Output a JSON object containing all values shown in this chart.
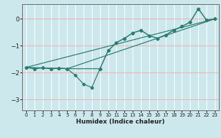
{
  "xlabel": "Humidex (Indice chaleur)",
  "bg_color": "#cce8ec",
  "grid_color": "#e8e8e8",
  "line_color": "#2e7d72",
  "xlim": [
    -0.5,
    23.5
  ],
  "ylim": [
    -3.4,
    0.55
  ],
  "xticks": [
    0,
    1,
    2,
    3,
    4,
    5,
    6,
    7,
    8,
    9,
    10,
    11,
    12,
    13,
    14,
    15,
    16,
    17,
    18,
    19,
    20,
    21,
    22,
    23
  ],
  "yticks": [
    0,
    -1,
    -2,
    -3
  ],
  "series_main_x": [
    0,
    1,
    2,
    3,
    4,
    5,
    6,
    7,
    8,
    9,
    10,
    11,
    12,
    13,
    14,
    15,
    16,
    17,
    18,
    19,
    20,
    21,
    22,
    23
  ],
  "series_main_y": [
    -1.8,
    -1.85,
    -1.82,
    -1.85,
    -1.83,
    -1.85,
    -2.1,
    -2.42,
    -2.55,
    -1.85,
    -1.18,
    -0.88,
    -0.72,
    -0.52,
    -0.42,
    -0.62,
    -0.72,
    -0.6,
    -0.42,
    -0.28,
    -0.12,
    0.38,
    -0.04,
    0.0
  ],
  "series_skip_x": [
    0,
    1,
    2,
    3,
    4,
    5,
    9,
    10,
    11,
    12,
    13,
    14,
    15,
    16,
    17,
    18,
    19,
    20,
    21,
    22,
    23
  ],
  "series_skip_y": [
    -1.8,
    -1.85,
    -1.82,
    -1.85,
    -1.83,
    -1.85,
    -1.85,
    -1.18,
    -0.88,
    -0.72,
    -0.52,
    -0.42,
    -0.62,
    -0.72,
    -0.6,
    -0.42,
    -0.28,
    -0.12,
    0.38,
    -0.04,
    0.0
  ],
  "line1_x": [
    0,
    23
  ],
  "line1_y": [
    -1.8,
    0.0
  ],
  "line2_x": [
    0,
    5,
    23
  ],
  "line2_y": [
    -1.8,
    -1.85,
    0.0
  ]
}
